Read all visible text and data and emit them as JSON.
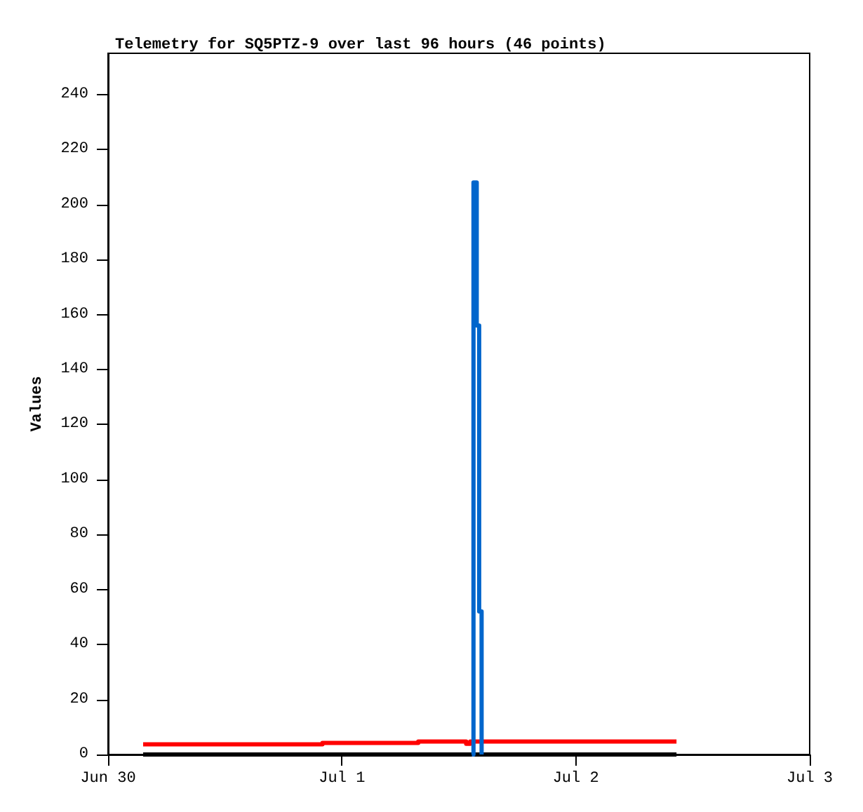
{
  "chart_data": {
    "type": "line",
    "title": "Telemetry for SQ5PTZ-9 over last 96 hours (46 points)",
    "ylabel": "Values",
    "xlim": [
      "--06-30",
      "--07-03"
    ],
    "xticks": [
      {
        "value": "--06-30",
        "label": "Jun 30"
      },
      {
        "value": "--07-01",
        "label": "Jul 1"
      },
      {
        "value": "--07-02",
        "label": "Jul 2"
      },
      {
        "value": "--07-03",
        "label": "Jul 3"
      }
    ],
    "ylim": [
      0,
      255
    ],
    "yticks": [
      0,
      20,
      40,
      60,
      80,
      100,
      120,
      140,
      160,
      180,
      200,
      220,
      240
    ],
    "grid": false,
    "marker": "none",
    "line_style": "solid",
    "series": [
      {
        "color": "#000000",
        "x": [
          "--06-30T03:36",
          "--07-02T10:20"
        ],
        "values": [
          0,
          0
        ]
      },
      {
        "type": "step",
        "color": "#ff0000",
        "x": [
          "--06-30T03:36",
          "--06-30T22:00",
          "--07-01T07:50",
          "--07-01T12:45",
          "--07-01T13:10",
          "--07-02T10:20"
        ],
        "values": [
          3.7,
          4.2,
          4.7,
          3.9,
          4.7,
          4.7
        ]
      },
      {
        "type": "step",
        "color": "#0066cc",
        "x": [
          "--07-01T13:20",
          "--07-01T13:30",
          "--07-01T13:50",
          "--07-01T14:05",
          "--07-01T14:20"
        ],
        "values": [
          0,
          208,
          156,
          52,
          0
        ]
      }
    ]
  }
}
